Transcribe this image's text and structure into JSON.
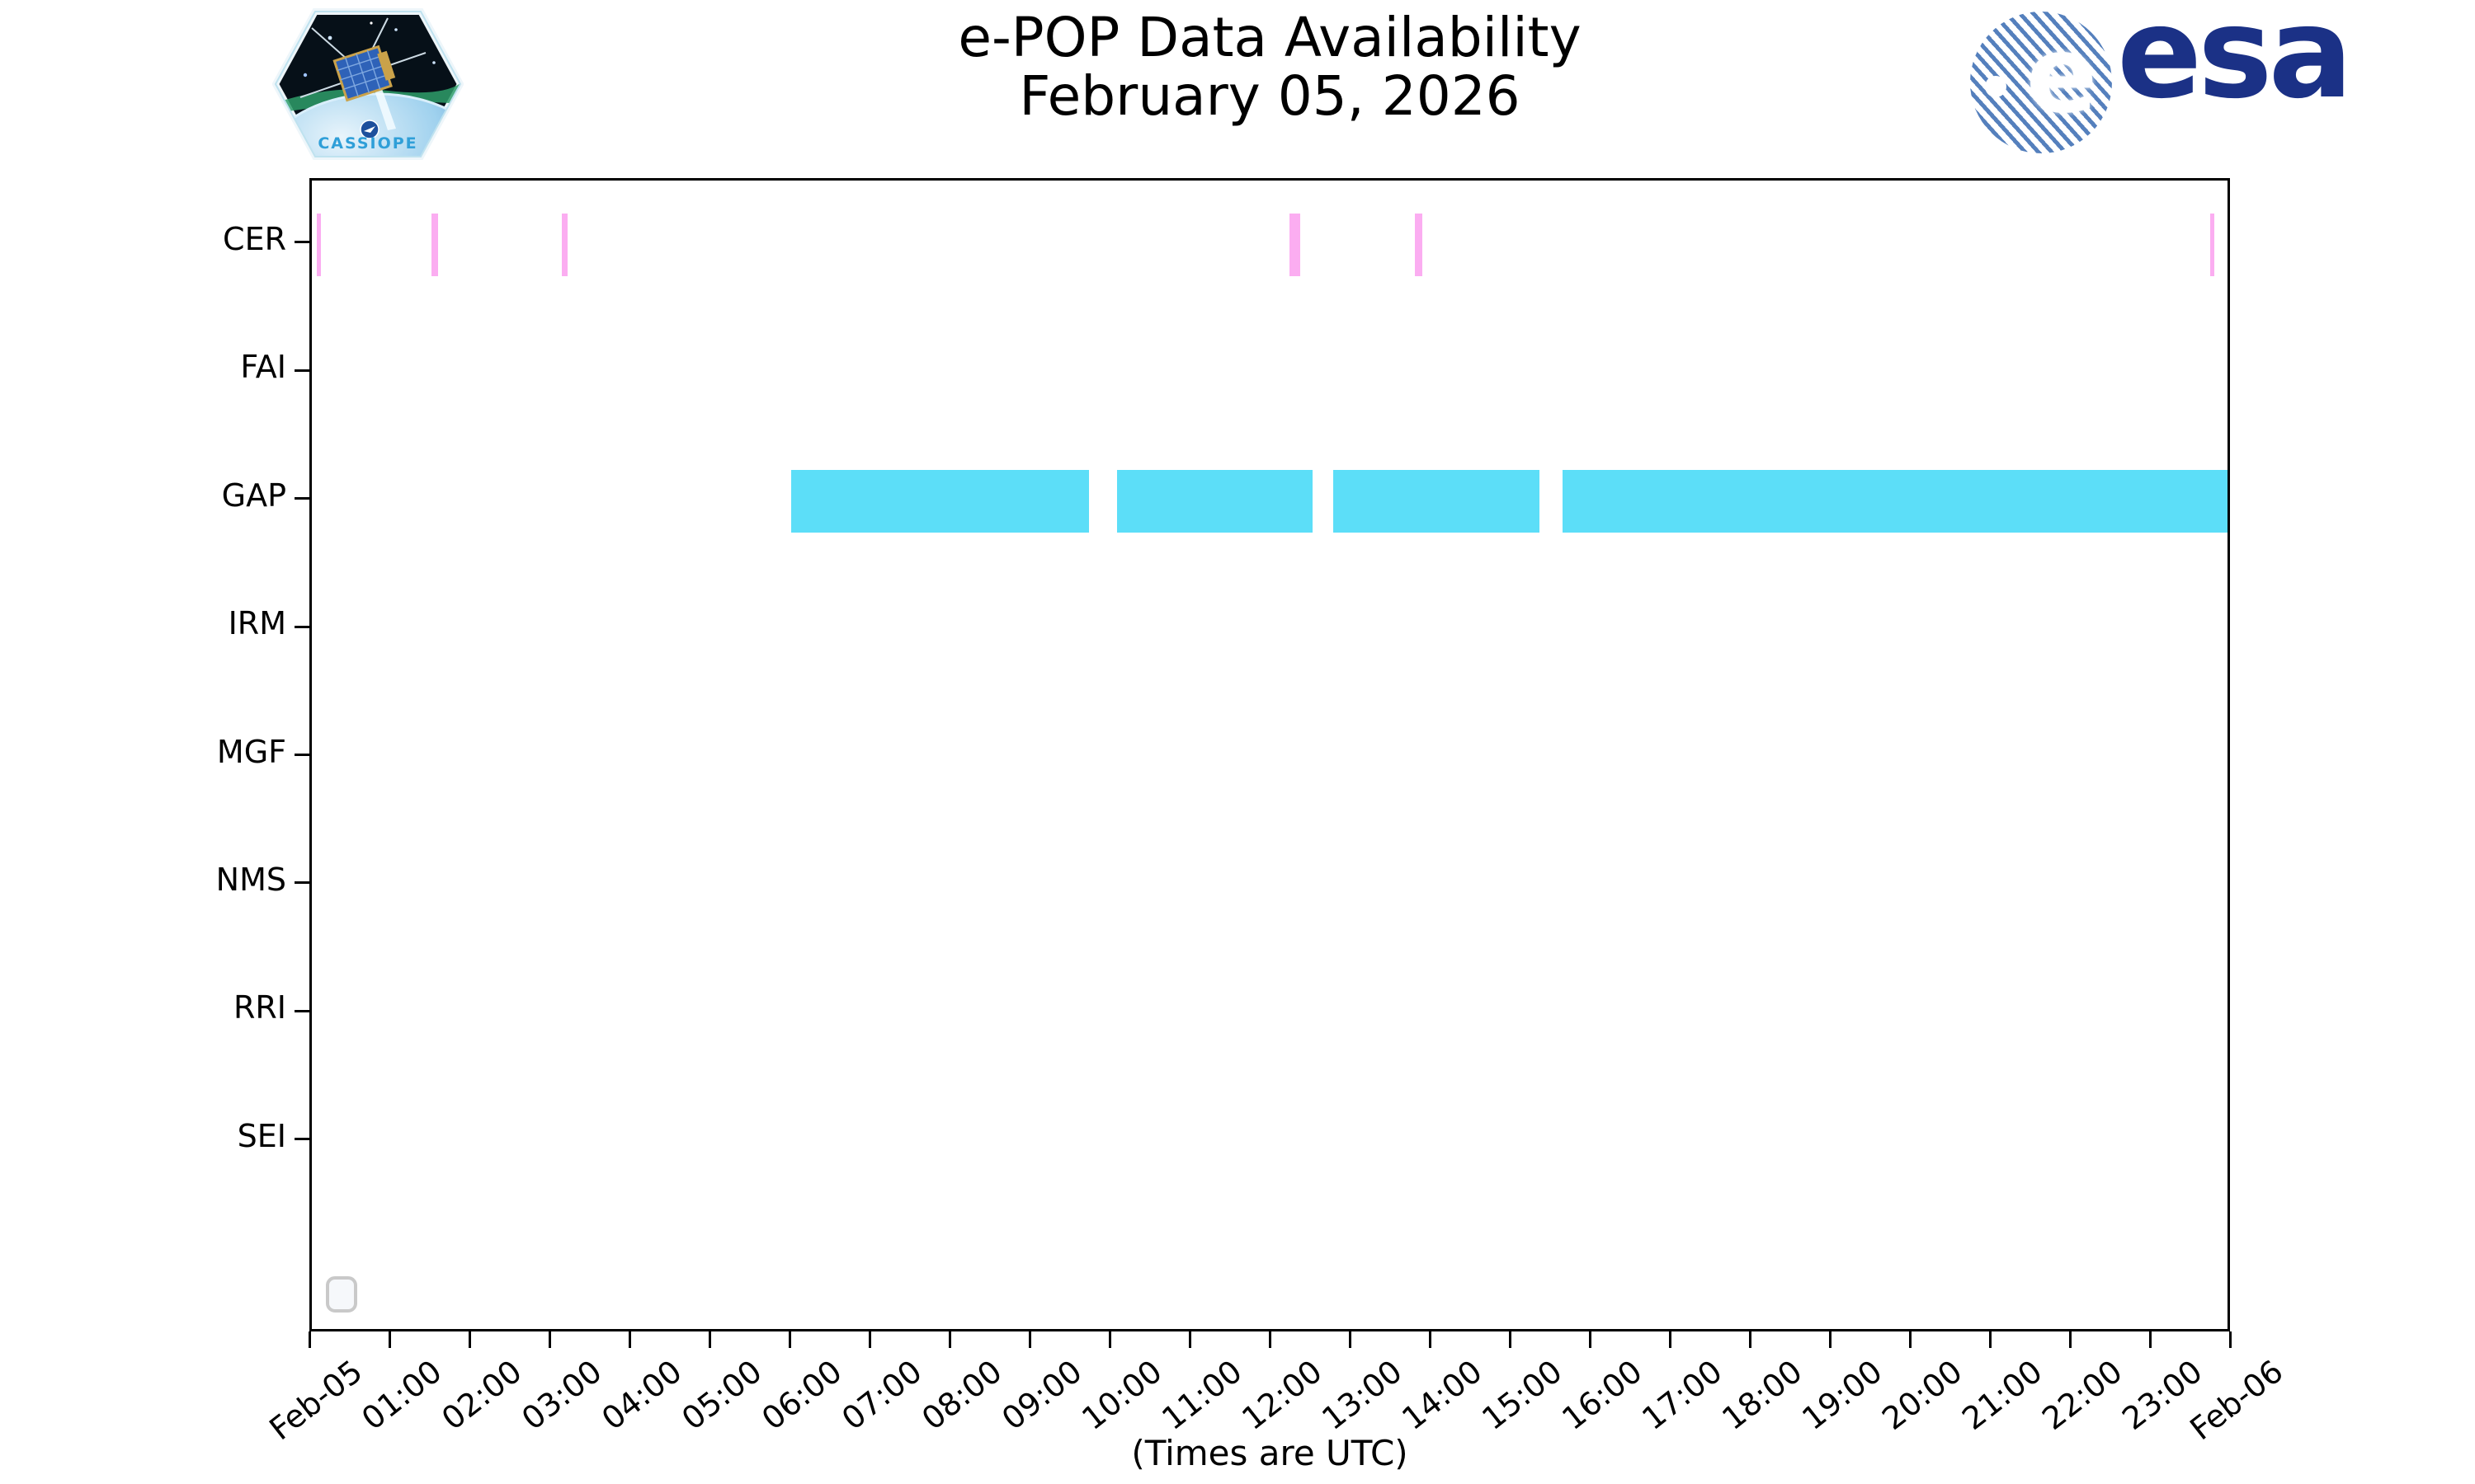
{
  "header": {
    "title_line1": "e-POP Data Availability",
    "title_line2": "February 05, 2026",
    "cassiope_patch": {
      "label": "CASSIOPE"
    },
    "esa_logo": {
      "globe_letter": "e",
      "wordmark": "esa"
    }
  },
  "colors": {
    "cer_bar": "#fbadf1",
    "gap_bar": "#5cdef8",
    "axis": "#000000",
    "esa_navy": "#1b3186",
    "esa_stripe_blue": "#5580bd",
    "cassiope_blue": "#2f9fd8"
  },
  "chart_data": {
    "type": "timeline",
    "title": "e-POP Data Availability",
    "subtitle": "February 05, 2026",
    "xlabel": "(Times are UTC)",
    "x_axis": {
      "start_label": "Feb-05",
      "end_label": "Feb-06",
      "hours_span": 24,
      "tick_interval_hours": 1,
      "tick_labels": [
        "Feb-05",
        "01:00",
        "02:00",
        "03:00",
        "04:00",
        "05:00",
        "06:00",
        "07:00",
        "08:00",
        "09:00",
        "10:00",
        "11:00",
        "12:00",
        "13:00",
        "14:00",
        "15:00",
        "16:00",
        "17:00",
        "18:00",
        "19:00",
        "20:00",
        "21:00",
        "22:00",
        "23:00",
        "Feb-06"
      ]
    },
    "y_axis": {
      "rows": [
        "CER",
        "FAI",
        "GAP",
        "IRM",
        "MGF",
        "NMS",
        "RRI",
        "SEI"
      ]
    },
    "series": [
      {
        "row": "CER",
        "color": "#fbadf1",
        "intervals_utc": [
          [
            "00:04",
            "00:07"
          ],
          [
            "01:30",
            "01:35"
          ],
          [
            "03:08",
            "03:12"
          ],
          [
            "12:15",
            "12:23"
          ],
          [
            "13:49",
            "13:55"
          ],
          [
            "23:47",
            "23:50"
          ]
        ]
      },
      {
        "row": "GAP",
        "color": "#5cdef8",
        "intervals_utc": [
          [
            "06:00",
            "09:44"
          ],
          [
            "10:05",
            "12:32"
          ],
          [
            "12:48",
            "15:23"
          ],
          [
            "15:40",
            "24:00"
          ]
        ]
      }
    ],
    "legend": {
      "visible": true,
      "entries": []
    },
    "grid": false
  }
}
